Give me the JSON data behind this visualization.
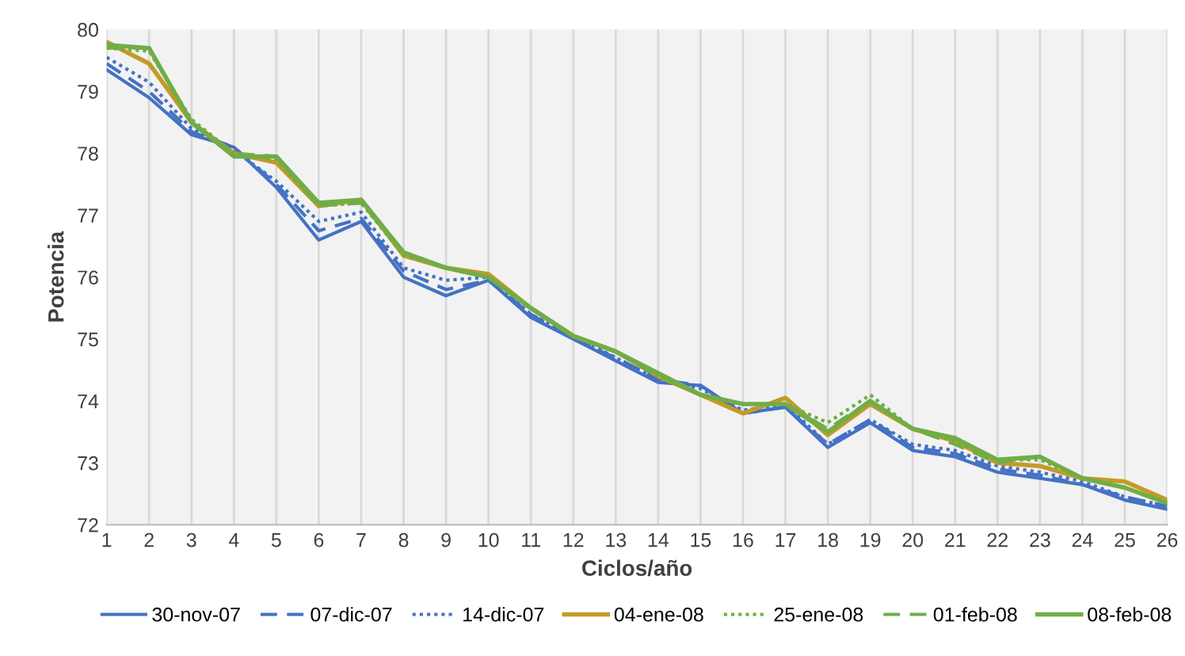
{
  "chart_data": {
    "type": "line",
    "xlabel": "Ciclos/año",
    "ylabel": "Potencia",
    "categories": [
      "1",
      "2",
      "3",
      "4",
      "5",
      "6",
      "7",
      "8",
      "9",
      "10",
      "11",
      "12",
      "13",
      "14",
      "15",
      "16",
      "17",
      "18",
      "19",
      "20",
      "21",
      "22",
      "23",
      "24",
      "25",
      "26"
    ],
    "ylim": [
      72,
      80
    ],
    "yticks": [
      72,
      73,
      74,
      75,
      76,
      77,
      78,
      79,
      80
    ],
    "grid": "x",
    "legend": "bottom",
    "series": [
      {
        "name": "30-nov-07",
        "color": "#4472c4",
        "line_style": "solid",
        "values": [
          79.35,
          78.9,
          78.3,
          78.1,
          77.45,
          76.6,
          76.9,
          76.0,
          75.7,
          75.95,
          75.35,
          75.0,
          74.65,
          74.3,
          74.25,
          73.8,
          73.9,
          73.25,
          73.65,
          73.2,
          73.1,
          72.85,
          72.75,
          72.65,
          72.4,
          72.25
        ]
      },
      {
        "name": "07-dic-07",
        "color": "#4472c4",
        "line_style": "dashed",
        "values": [
          79.45,
          79.0,
          78.35,
          78.1,
          77.5,
          76.75,
          76.95,
          76.1,
          75.8,
          75.95,
          75.4,
          75.0,
          74.7,
          74.35,
          74.25,
          73.8,
          73.9,
          73.3,
          73.7,
          73.25,
          73.15,
          72.9,
          72.8,
          72.65,
          72.45,
          72.3
        ]
      },
      {
        "name": "14-dic-07",
        "color": "#4472c4",
        "line_style": "dotted",
        "values": [
          79.55,
          79.15,
          78.4,
          78.05,
          77.55,
          76.9,
          77.05,
          76.15,
          75.95,
          76.0,
          75.4,
          75.05,
          74.7,
          74.35,
          74.2,
          73.85,
          73.95,
          73.3,
          73.7,
          73.3,
          73.2,
          72.95,
          72.85,
          72.7,
          72.45,
          72.3
        ]
      },
      {
        "name": "04-ene-08",
        "color": "#c49a28",
        "line_style": "solid",
        "values": [
          79.8,
          79.45,
          78.5,
          78.0,
          77.85,
          77.15,
          77.25,
          76.35,
          76.15,
          76.05,
          75.5,
          75.05,
          74.8,
          74.4,
          74.1,
          73.8,
          74.05,
          73.45,
          73.95,
          73.55,
          73.35,
          73.0,
          72.95,
          72.75,
          72.7,
          72.4
        ]
      },
      {
        "name": "25-ene-08",
        "color": "#70ad47",
        "line_style": "dotted",
        "values": [
          79.7,
          79.65,
          78.55,
          78.0,
          77.9,
          77.15,
          77.2,
          76.35,
          76.15,
          76.0,
          75.5,
          75.05,
          74.8,
          74.4,
          74.1,
          73.95,
          73.95,
          73.65,
          74.1,
          73.55,
          73.35,
          73.05,
          73.05,
          72.75,
          72.6,
          72.35
        ]
      },
      {
        "name": "01-feb-08",
        "color": "#70ad47",
        "line_style": "dashed",
        "values": [
          79.7,
          79.7,
          78.5,
          78.0,
          77.95,
          77.15,
          77.2,
          76.4,
          76.15,
          76.0,
          75.5,
          75.05,
          74.8,
          74.4,
          74.1,
          73.95,
          73.95,
          73.55,
          74.0,
          73.55,
          73.3,
          73.0,
          73.1,
          72.75,
          72.6,
          72.35
        ]
      },
      {
        "name": "08-feb-08",
        "color": "#70ad47",
        "line_style": "solid",
        "values": [
          79.75,
          79.7,
          78.5,
          77.95,
          77.95,
          77.2,
          77.25,
          76.4,
          76.15,
          76.0,
          75.5,
          75.05,
          74.8,
          74.45,
          74.1,
          73.95,
          73.95,
          73.5,
          74.0,
          73.55,
          73.4,
          73.05,
          73.1,
          72.75,
          72.6,
          72.35
        ]
      }
    ]
  }
}
